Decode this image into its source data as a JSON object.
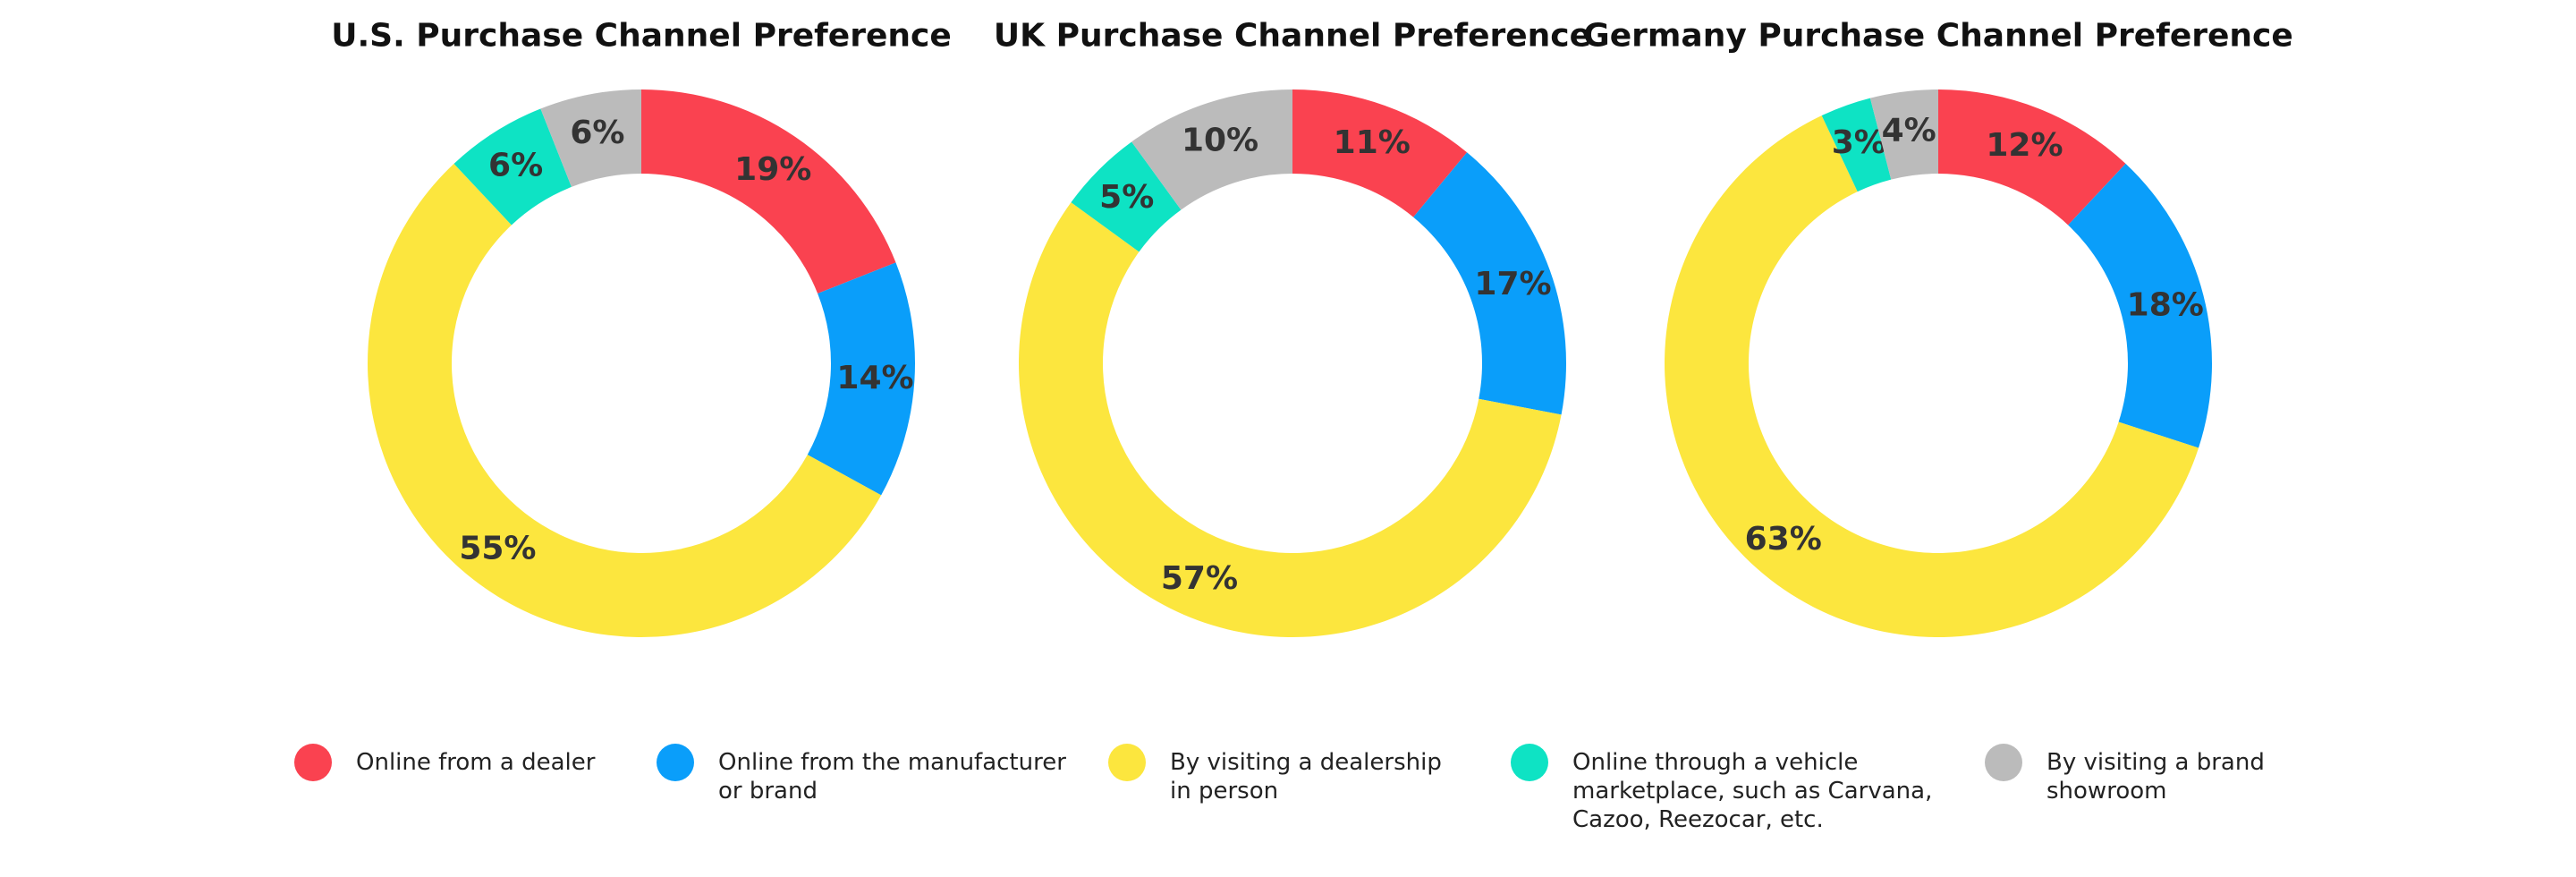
{
  "legend": [
    {
      "key": "dealer_online",
      "lines": [
        "Online from a dealer"
      ],
      "color": "#FA4250"
    },
    {
      "key": "manufacturer_online",
      "lines": [
        "Online from the manufacturer",
        "or brand"
      ],
      "color": "#0A9EFA"
    },
    {
      "key": "dealership_visit",
      "lines": [
        "By visiting a dealership",
        "in person"
      ],
      "color": "#FCE63E"
    },
    {
      "key": "marketplace_online",
      "lines": [
        "Online through a vehicle",
        "marketplace, such as Carvana,",
        "Cazoo, Reezocar, etc."
      ],
      "color": "#0EE3C4"
    },
    {
      "key": "showroom_visit",
      "lines": [
        "By visiting a brand",
        "showroom"
      ],
      "color": "#BBBBBB"
    }
  ],
  "chart_data": [
    {
      "type": "pie",
      "title": "U.S. Purchase Channel Preference",
      "categories": [
        "Online from a dealer",
        "Online from the manufacturer or brand",
        "By visiting a dealership in person",
        "Online through a vehicle marketplace, such as Carvana, Cazoo, Reezocar, etc.",
        "By visiting a brand showroom"
      ],
      "values": [
        19,
        14,
        55,
        6,
        6
      ],
      "labels": [
        "19%",
        "14%",
        "55%",
        "6%",
        "6%"
      ]
    },
    {
      "type": "pie",
      "title": "UK Purchase Channel Preference",
      "categories": [
        "Online from a dealer",
        "Online from the manufacturer or brand",
        "By visiting a dealership in person",
        "Online through a vehicle marketplace, such as Carvana, Cazoo, Reezocar, etc.",
        "By visiting a brand showroom"
      ],
      "values": [
        11,
        17,
        57,
        5,
        10
      ],
      "labels": [
        "11%",
        "17%",
        "57%",
        "5%",
        "10%"
      ]
    },
    {
      "type": "pie",
      "title": "Germany Purchase Channel Preference",
      "categories": [
        "Online from a dealer",
        "Online from the manufacturer or brand",
        "By visiting a dealership in person",
        "Online through a vehicle marketplace, such as Carvana, Cazoo, Reezocar, etc.",
        "By visiting a brand showroom"
      ],
      "values": [
        12,
        18,
        63,
        3,
        4
      ],
      "labels": [
        "12%",
        "18%",
        "63%",
        "3%",
        "4%"
      ]
    }
  ]
}
